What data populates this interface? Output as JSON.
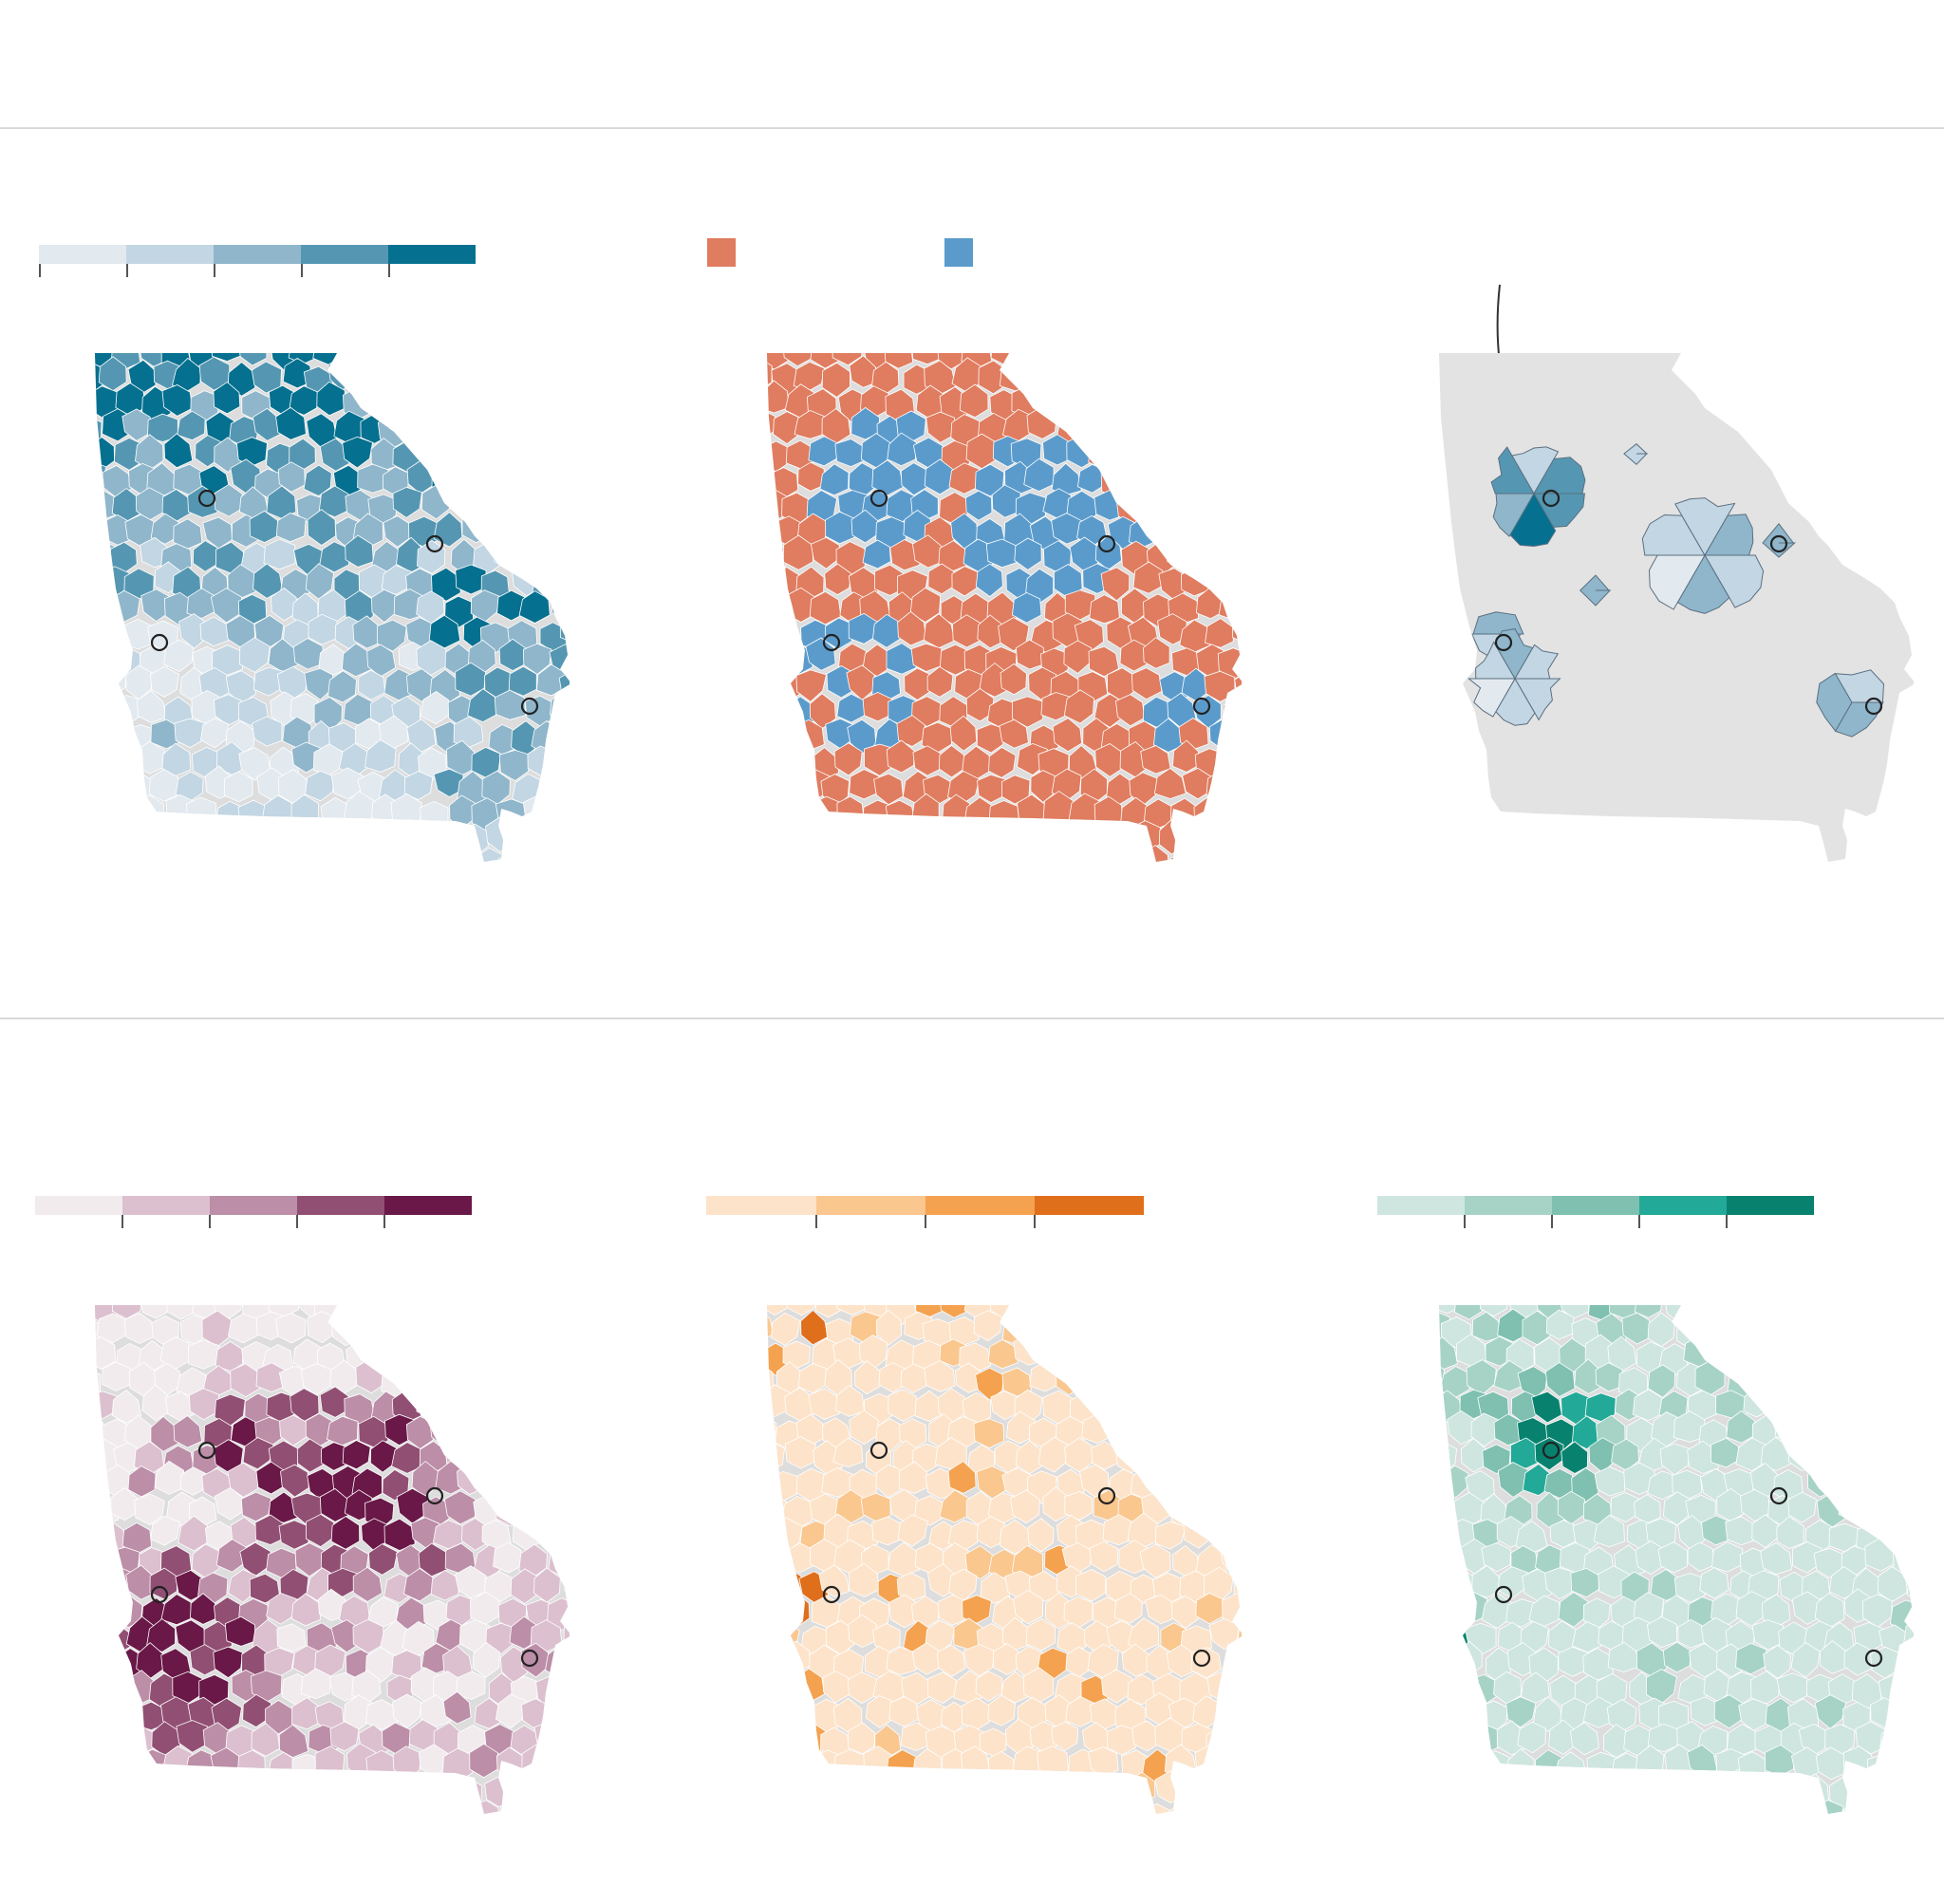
{
  "colors": {
    "blue_scale": [
      "#e2e9ef",
      "#c2d6e3",
      "#8fb6cb",
      "#5597b2",
      "#05708f"
    ],
    "party": {
      "red": "#e07c5f",
      "blue": "#5b9bcc"
    },
    "purple_scale": [
      "#f1ebee",
      "#dcc0cf",
      "#bc8ea8",
      "#914f73",
      "#691847"
    ],
    "orange_scale": [
      "#fde3c9",
      "#fac78f",
      "#f4a24f",
      "#e06f1c"
    ],
    "teal_scale": [
      "#cee6df",
      "#a6d3c6",
      "#7fc0b0",
      "#23a997",
      "#08826f"
    ],
    "grey_fill": "#e3e3e3",
    "city_marker": "#222222"
  },
  "maps": [
    {
      "id": "blue-gradient",
      "fill": "blue"
    },
    {
      "id": "party-result",
      "fill": "party"
    },
    {
      "id": "metro-areas",
      "fill": "grey"
    },
    {
      "id": "purple-gradient",
      "fill": "purple"
    },
    {
      "id": "orange-gradient",
      "fill": "orange"
    },
    {
      "id": "teal-gradient",
      "fill": "teal"
    }
  ],
  "city_markers": [
    "atlanta",
    "augusta",
    "columbus",
    "savannah"
  ]
}
